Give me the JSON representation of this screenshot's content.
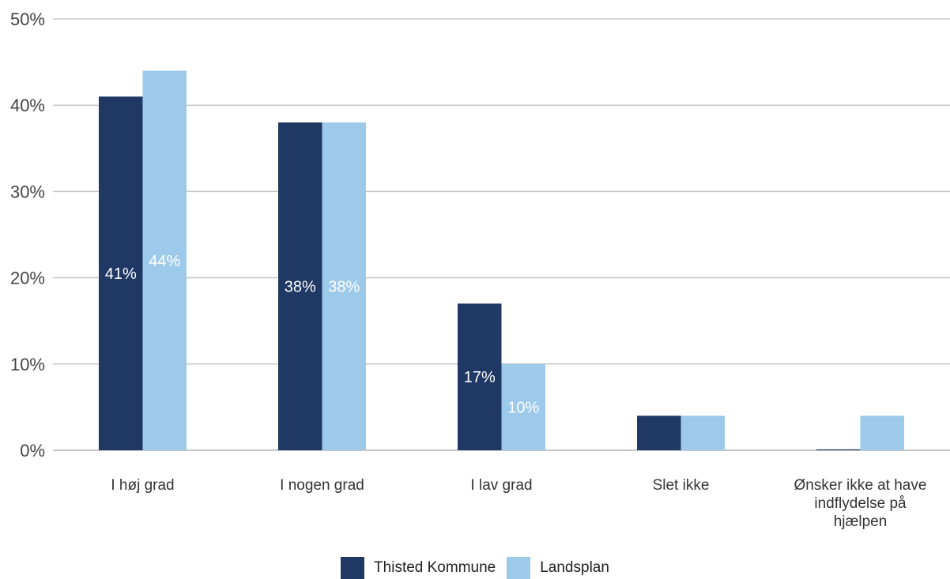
{
  "chart_data": {
    "type": "bar",
    "categories": [
      [
        "I høj grad"
      ],
      [
        "I nogen grad"
      ],
      [
        "I lav grad"
      ],
      [
        "Slet ikke"
      ],
      [
        "Ønsker ikke at have",
        "indflydelse på",
        "hjælpen"
      ]
    ],
    "series": [
      {
        "name": "Thisted Kommune",
        "color": "#1f3864",
        "values": [
          41,
          38,
          17,
          4,
          0.1
        ],
        "labels": [
          "41%",
          "38%",
          "17%",
          "",
          ""
        ]
      },
      {
        "name": "Landsplan",
        "color": "#9dc9ea",
        "values": [
          44,
          38,
          10,
          4,
          4
        ],
        "labels": [
          "44%",
          "38%",
          "10%",
          "",
          ""
        ]
      }
    ],
    "ylim": [
      0,
      50
    ],
    "yticks": [
      "0%",
      "10%",
      "20%",
      "30%",
      "40%",
      "50%"
    ],
    "grid": true,
    "legend_position": "bottom"
  }
}
